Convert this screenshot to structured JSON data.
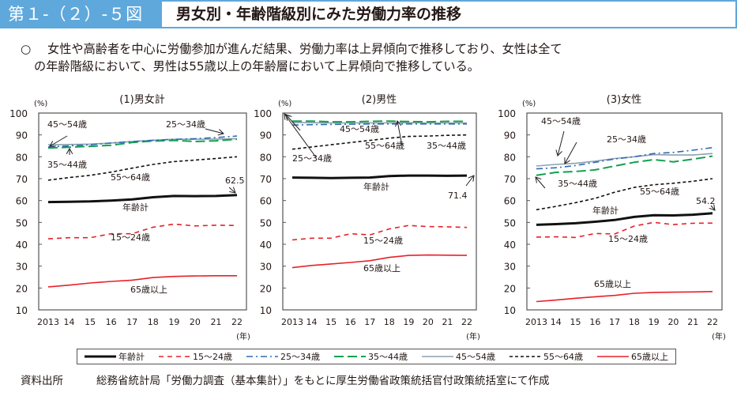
{
  "header": {
    "figure_number": "第１-（２）-５図",
    "title": "男女別・年齢階級別にみた労働力率の推移"
  },
  "summary": {
    "bullet": "○",
    "line1": "女性や高齢者を中心に労働参加が進んだ結果、労働力率は上昇傾向で推移しており、女性は全て",
    "line2": "の年齢階級において、男性は55歳以上の年齢層において上昇傾向で推移している。"
  },
  "legend": [
    {
      "key": "total",
      "label": "年齢計",
      "color": "#111111",
      "style": "solid-thick"
    },
    {
      "key": "a15_24",
      "label": "15～24歳",
      "color": "#e8202a",
      "style": "dashed"
    },
    {
      "key": "a25_34",
      "label": "25～34歳",
      "color": "#2e6bb8",
      "style": "dashdot"
    },
    {
      "key": "a35_44",
      "label": "35～44歳",
      "color": "#13a050",
      "style": "longdash"
    },
    {
      "key": "a45_54",
      "label": "45～54歳",
      "color": "#8ea0b0",
      "style": "solid"
    },
    {
      "key": "a55_64",
      "label": "55～64歳",
      "color": "#111111",
      "style": "shortdash"
    },
    {
      "key": "a65",
      "label": "65歳以上",
      "color": "#e8202a",
      "style": "solid"
    }
  ],
  "source": {
    "label": "資料出所",
    "text": "総務省統計局「労働力調査（基本集計）」をもとに厚生労働省政策統括官付政策統括室にて作成"
  },
  "chart_data": [
    {
      "type": "line",
      "title": "(1)男女計",
      "ylabel": "(%)",
      "xlabel": "(年)",
      "x": [
        "2013",
        "14",
        "15",
        "16",
        "17",
        "18",
        "19",
        "20",
        "21",
        "22"
      ],
      "ylim": [
        10,
        100
      ],
      "yticks": [
        10,
        20,
        30,
        40,
        50,
        60,
        70,
        80,
        90,
        100
      ],
      "series": [
        {
          "key": "total",
          "name": "年齢計",
          "values": [
            59.3,
            59.4,
            59.6,
            60.0,
            60.5,
            61.5,
            62.1,
            62.0,
            62.1,
            62.5
          ]
        },
        {
          "key": "a15_24",
          "name": "15～24歳",
          "values": [
            42.5,
            43.0,
            43.0,
            44.8,
            44.8,
            47.8,
            49.2,
            48.4,
            48.7,
            48.6
          ]
        },
        {
          "key": "a25_34",
          "name": "25～34歳",
          "values": [
            84.5,
            85.0,
            85.5,
            86.3,
            87.0,
            87.5,
            88.0,
            88.3,
            88.8,
            89.5
          ]
        },
        {
          "key": "a35_44",
          "name": "35～44歳",
          "values": [
            84.0,
            84.4,
            84.8,
            85.3,
            86.5,
            87.2,
            87.5,
            87.0,
            87.3,
            88.0
          ]
        },
        {
          "key": "a45_54",
          "name": "45～54歳",
          "values": [
            85.5,
            85.6,
            85.8,
            86.3,
            87.0,
            87.6,
            88.0,
            88.0,
            88.1,
            88.3
          ]
        },
        {
          "key": "a55_64",
          "name": "55～64歳",
          "values": [
            69.3,
            70.5,
            71.5,
            73.0,
            74.8,
            76.5,
            77.8,
            78.5,
            79.2,
            80.0
          ]
        },
        {
          "key": "a65",
          "name": "65歳以上",
          "values": [
            20.5,
            21.3,
            22.3,
            23.0,
            23.6,
            24.8,
            25.3,
            25.5,
            25.6,
            25.6
          ]
        }
      ],
      "annotations": [
        {
          "text": "45～54歳",
          "series": "a45_54"
        },
        {
          "text": "25～34歳",
          "series": "a25_34"
        },
        {
          "text": "35～44歳",
          "series": "a35_44"
        },
        {
          "text": "55～64歳",
          "series": "a55_64"
        },
        {
          "text": "62.5",
          "series": "total"
        },
        {
          "text": "年齢計",
          "series": "total"
        },
        {
          "text": "15～24歳",
          "series": "a15_24"
        },
        {
          "text": "65歳以上",
          "series": "a65"
        }
      ]
    },
    {
      "type": "line",
      "title": "(2)男性",
      "ylabel": "(%)",
      "xlabel": "(年)",
      "x": [
        "2013",
        "14",
        "15",
        "16",
        "17",
        "18",
        "19",
        "20",
        "21",
        "22"
      ],
      "ylim": [
        10,
        100
      ],
      "yticks": [
        10,
        20,
        30,
        40,
        50,
        60,
        70,
        80,
        90,
        100
      ],
      "series": [
        {
          "key": "total",
          "name": "年齢計",
          "values": [
            70.5,
            70.4,
            70.3,
            70.4,
            70.5,
            71.2,
            71.4,
            71.4,
            71.3,
            71.4
          ]
        },
        {
          "key": "a15_24",
          "name": "15～24歳",
          "values": [
            42.0,
            42.8,
            42.8,
            44.8,
            44.3,
            47.0,
            48.6,
            48.1,
            48.0,
            47.7
          ]
        },
        {
          "key": "a25_34",
          "name": "25～34歳",
          "values": [
            94.5,
            94.7,
            94.8,
            94.9,
            95.0,
            95.0,
            95.0,
            95.0,
            95.0,
            95.0
          ]
        },
        {
          "key": "a35_44",
          "name": "35～44歳",
          "values": [
            96.3,
            96.3,
            96.0,
            96.0,
            96.2,
            96.3,
            96.1,
            96.0,
            96.2,
            96.2
          ]
        },
        {
          "key": "a45_54",
          "name": "45～54歳",
          "values": [
            95.7,
            95.6,
            95.5,
            95.5,
            95.5,
            95.5,
            95.6,
            95.5,
            95.5,
            95.5
          ]
        },
        {
          "key": "a55_64",
          "name": "55～64歳",
          "values": [
            83.5,
            84.5,
            85.5,
            86.5,
            87.5,
            88.5,
            89.3,
            89.5,
            89.8,
            90.0
          ]
        },
        {
          "key": "a65",
          "name": "65歳以上",
          "values": [
            29.3,
            30.3,
            31.0,
            31.7,
            32.5,
            34.0,
            34.9,
            35.1,
            35.0,
            34.9
          ]
        }
      ],
      "annotations": [
        {
          "text": "45～54歳",
          "series": "a45_54"
        },
        {
          "text": "25～34歳",
          "series": "a25_34"
        },
        {
          "text": "55～64歳",
          "series": "a55_64"
        },
        {
          "text": "35～44歳",
          "series": "a35_44"
        },
        {
          "text": "年齢計",
          "series": "total"
        },
        {
          "text": "71.4",
          "series": "total"
        },
        {
          "text": "15～24歳",
          "series": "a15_24"
        },
        {
          "text": "65歳以上",
          "series": "a65"
        }
      ]
    },
    {
      "type": "line",
      "title": "(3)女性",
      "ylabel": "(%)",
      "xlabel": "(年)",
      "x": [
        "2013",
        "14",
        "15",
        "16",
        "17",
        "18",
        "19",
        "20",
        "21",
        "22"
      ],
      "ylim": [
        10,
        100
      ],
      "yticks": [
        10,
        20,
        30,
        40,
        50,
        60,
        70,
        80,
        90,
        100
      ],
      "series": [
        {
          "key": "total",
          "name": "年齢計",
          "values": [
            48.9,
            49.2,
            49.6,
            50.3,
            51.1,
            52.5,
            53.3,
            53.2,
            53.5,
            54.2
          ]
        },
        {
          "key": "a15_24",
          "name": "15～24歳",
          "values": [
            43.3,
            43.4,
            43.1,
            44.9,
            44.7,
            48.3,
            50.0,
            49.0,
            49.6,
            49.7
          ]
        },
        {
          "key": "a25_34",
          "name": "25～34歳",
          "values": [
            74.5,
            75.0,
            76.0,
            77.5,
            79.0,
            80.0,
            81.5,
            82.0,
            83.0,
            84.2
          ]
        },
        {
          "key": "a35_44",
          "name": "35～44歳",
          "values": [
            71.5,
            72.9,
            73.3,
            74.0,
            75.8,
            77.5,
            78.7,
            77.7,
            78.9,
            80.3
          ]
        },
        {
          "key": "a45_54",
          "name": "45～54歳",
          "values": [
            75.8,
            76.5,
            77.0,
            78.0,
            79.2,
            80.0,
            81.0,
            80.8,
            80.8,
            81.5
          ]
        },
        {
          "key": "a55_64",
          "name": "55～64歳",
          "values": [
            55.8,
            57.3,
            59.0,
            61.0,
            63.8,
            66.0,
            67.2,
            67.9,
            68.8,
            70.0
          ]
        },
        {
          "key": "a65",
          "name": "65歳以上",
          "values": [
            13.8,
            14.5,
            15.3,
            16.0,
            16.6,
            17.6,
            18.0,
            18.1,
            18.2,
            18.4
          ]
        }
      ],
      "annotations": [
        {
          "text": "45～54歳",
          "series": "a45_54"
        },
        {
          "text": "25～34歳",
          "series": "a25_34"
        },
        {
          "text": "35～44歳",
          "series": "a35_44"
        },
        {
          "text": "55～64歳",
          "series": "a55_64"
        },
        {
          "text": "54.2",
          "series": "total"
        },
        {
          "text": "年齢計",
          "series": "total"
        },
        {
          "text": "15～24歳",
          "series": "a15_24"
        },
        {
          "text": "65歳以上",
          "series": "a65"
        }
      ]
    }
  ]
}
